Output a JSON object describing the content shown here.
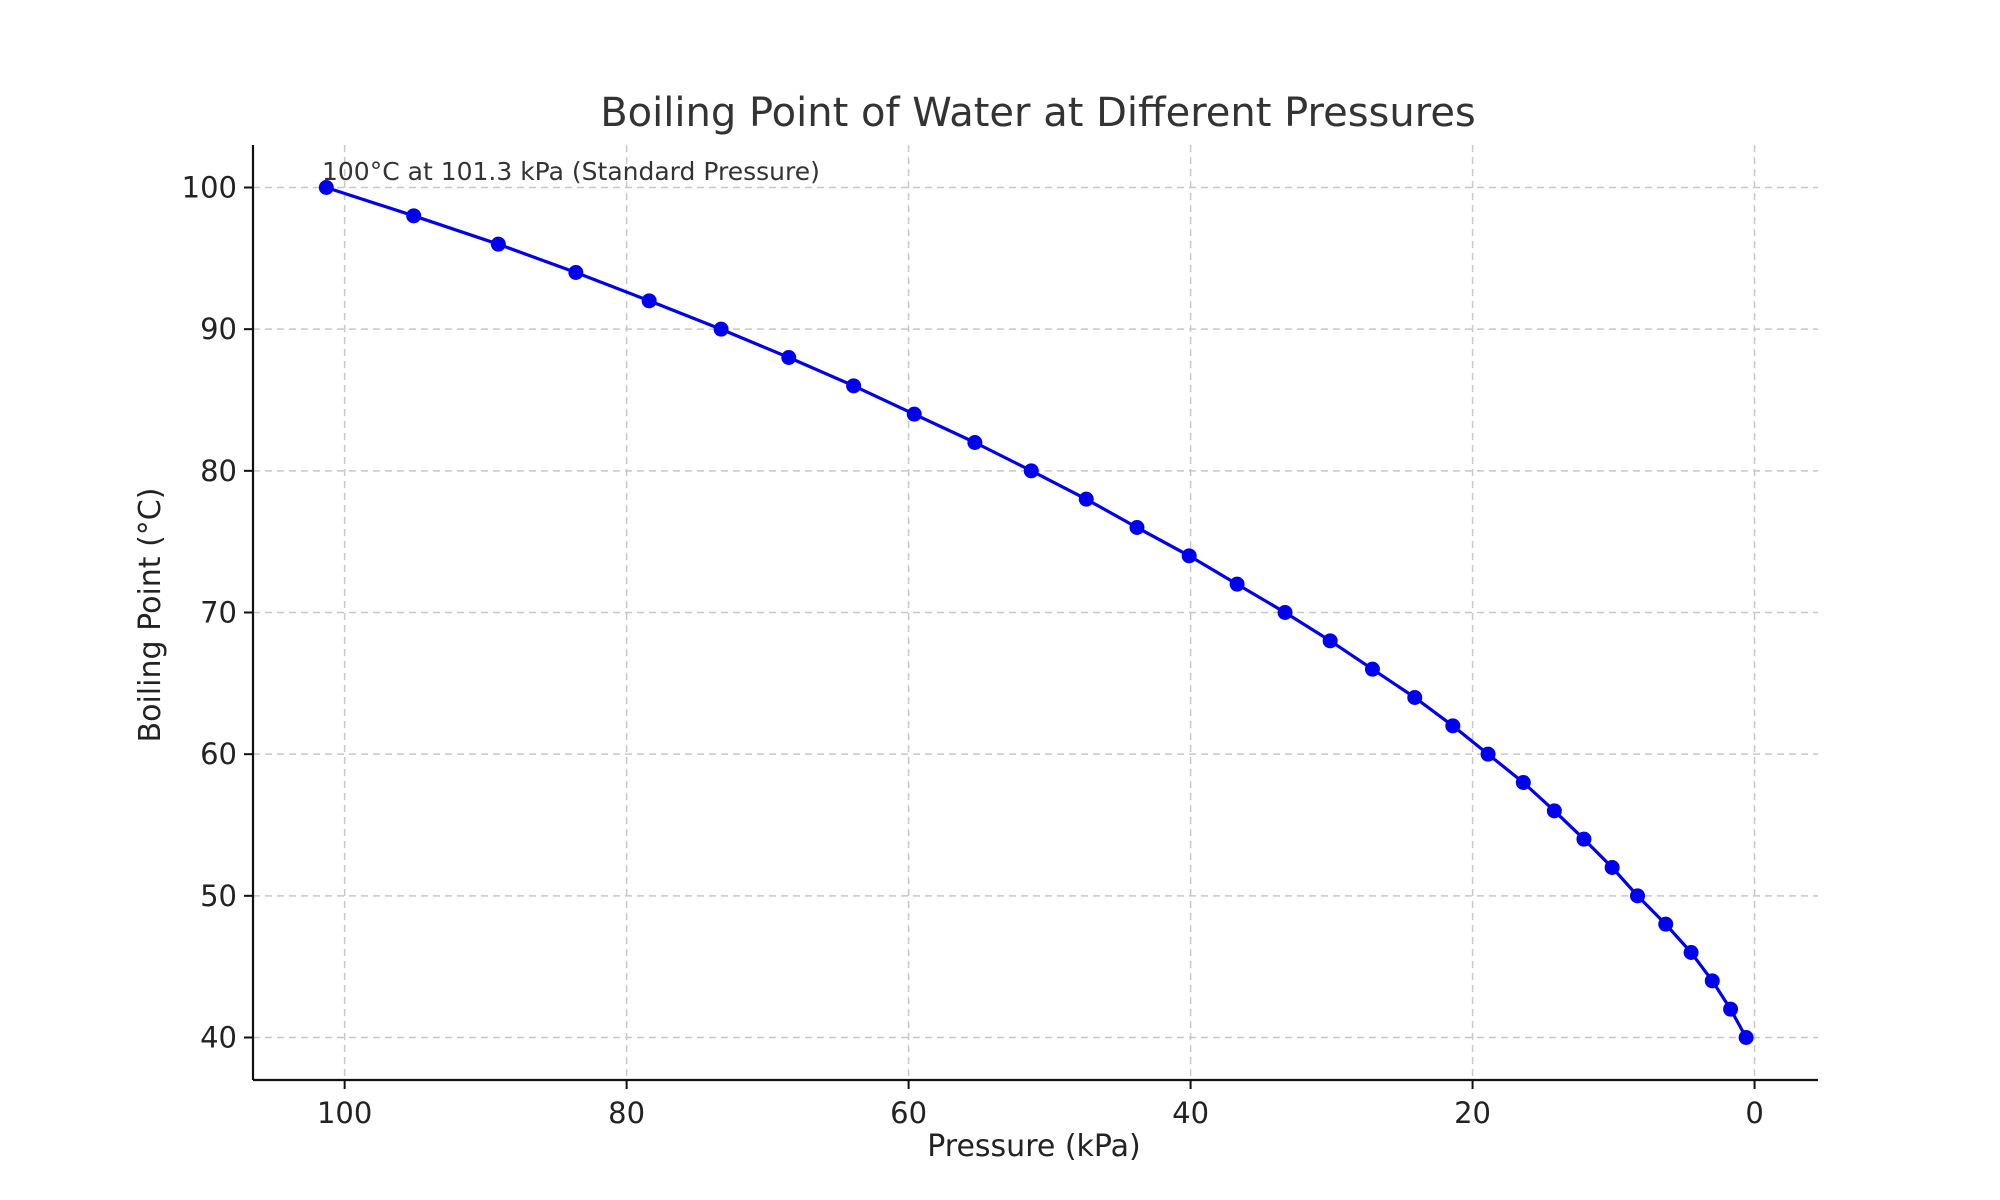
{
  "chart_data": {
    "type": "line",
    "title": "Boiling Point of Water at Different Pressures",
    "xlabel": "Pressure (kPa)",
    "ylabel": "Boiling Point (°C)",
    "xlim": [
      106.5,
      -4.5
    ],
    "ylim": [
      37,
      103
    ],
    "x_reversed": true,
    "x_ticks": [
      100,
      80,
      60,
      40,
      20,
      0
    ],
    "y_ticks": [
      40,
      50,
      60,
      70,
      80,
      90,
      100
    ],
    "grid": true,
    "color": "#0000ee",
    "marker": "circle",
    "series": [
      {
        "x": [
          101.3,
          95.1,
          89.1,
          83.6,
          78.4,
          73.3,
          68.5,
          63.9,
          59.6,
          55.3,
          51.3,
          47.4,
          43.8,
          40.1,
          36.7,
          33.3,
          30.1,
          27.1,
          24.1,
          21.4,
          18.9,
          16.4,
          14.2,
          12.1,
          10.1,
          8.3,
          6.3,
          4.5,
          3.0,
          1.7,
          0.6
        ],
        "y": [
          100,
          98,
          96,
          94,
          92,
          90,
          88,
          86,
          84,
          82,
          80,
          78,
          76,
          74,
          72,
          70,
          68,
          66,
          64,
          62,
          60,
          58,
          56,
          54,
          52,
          50,
          48,
          46,
          44,
          42,
          40
        ]
      }
    ],
    "annotations": [
      {
        "text": "100°C at 101.3 kPa (Standard Pressure)",
        "x": 101.3,
        "y": 100
      }
    ]
  }
}
